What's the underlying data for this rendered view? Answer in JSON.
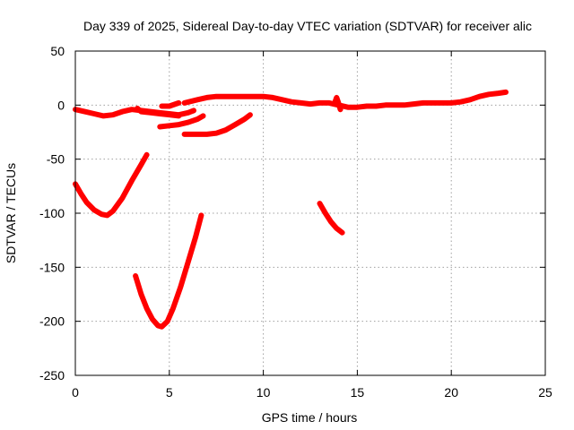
{
  "chart_data": {
    "type": "line",
    "title": "Day 339 of 2025, Sidereal Day-to-day VTEC variation (SDTVAR) for receiver alic",
    "xlabel": "GPS time / hours",
    "ylabel": "SDTVAR / TECUs",
    "xlim": [
      0,
      25
    ],
    "ylim": [
      -250,
      50
    ],
    "xticks": [
      0,
      5,
      10,
      15,
      20,
      25
    ],
    "yticks": [
      -250,
      -200,
      -150,
      -100,
      -50,
      0,
      50
    ],
    "xtick_labels": [
      "0",
      "5",
      "10",
      "15",
      "20",
      "25"
    ],
    "ytick_labels": [
      "-250",
      "-200",
      "-150",
      "-100",
      "-50",
      "0",
      "50"
    ],
    "grid": true,
    "legend": "none",
    "color": "#ff0000",
    "series": [
      {
        "points": [
          [
            0,
            -4
          ],
          [
            0.5,
            -6
          ],
          [
            1,
            -8
          ],
          [
            1.5,
            -10
          ],
          [
            2,
            -9
          ],
          [
            2.5,
            -6
          ],
          [
            3,
            -4
          ],
          [
            3.5,
            -5
          ],
          [
            4,
            -6
          ],
          [
            4.5,
            -7
          ],
          [
            5,
            -8
          ],
          [
            5.5,
            -9
          ],
          [
            6,
            -7
          ],
          [
            6.3,
            -5
          ]
        ]
      },
      {
        "points": [
          [
            3.3,
            -3
          ],
          [
            3.5,
            -6
          ],
          [
            4,
            -7
          ],
          [
            4.5,
            -8
          ],
          [
            5,
            -9
          ],
          [
            5.5,
            -10
          ]
        ]
      },
      {
        "points": [
          [
            4.6,
            -1
          ],
          [
            5,
            -1
          ],
          [
            5.5,
            2
          ]
        ]
      },
      {
        "points": [
          [
            4.5,
            -20
          ],
          [
            5,
            -19
          ],
          [
            5.5,
            -18
          ],
          [
            6,
            -16
          ],
          [
            6.5,
            -13
          ],
          [
            6.8,
            -10
          ]
        ]
      },
      {
        "points": [
          [
            5.8,
            -27
          ],
          [
            6.5,
            -27
          ],
          [
            7,
            -27
          ],
          [
            7.5,
            -26
          ],
          [
            8,
            -23
          ],
          [
            8.5,
            -18
          ],
          [
            9,
            -13
          ],
          [
            9.3,
            -9
          ]
        ]
      },
      {
        "points": [
          [
            5.8,
            2
          ],
          [
            6.5,
            5
          ],
          [
            7,
            7
          ],
          [
            7.5,
            8
          ],
          [
            8,
            8
          ],
          [
            8.5,
            8
          ],
          [
            9,
            8
          ],
          [
            9.5,
            8
          ],
          [
            10,
            8
          ],
          [
            10.5,
            7
          ],
          [
            11,
            5
          ],
          [
            11.5,
            3
          ],
          [
            12,
            2
          ],
          [
            12.5,
            1
          ],
          [
            13,
            2
          ],
          [
            13.5,
            2
          ],
          [
            14,
            0
          ],
          [
            14.5,
            -2
          ],
          [
            15,
            -2
          ],
          [
            15.5,
            -1
          ],
          [
            16,
            -1
          ],
          [
            16.5,
            0
          ],
          [
            17,
            0
          ],
          [
            17.5,
            0
          ],
          [
            18,
            1
          ],
          [
            18.5,
            2
          ],
          [
            19,
            2
          ],
          [
            19.5,
            2
          ],
          [
            20,
            2
          ],
          [
            20.5,
            3
          ],
          [
            21,
            5
          ],
          [
            21.5,
            8
          ],
          [
            22,
            10
          ],
          [
            22.5,
            11
          ],
          [
            22.9,
            12
          ]
        ]
      },
      {
        "points": [
          [
            13.8,
            2
          ],
          [
            13.9,
            7
          ],
          [
            14,
            2
          ],
          [
            14.1,
            -4
          ]
        ]
      },
      {
        "points": [
          [
            0,
            -73
          ],
          [
            0.3,
            -82
          ],
          [
            0.6,
            -90
          ],
          [
            1,
            -97
          ],
          [
            1.4,
            -101
          ],
          [
            1.7,
            -102
          ],
          [
            2,
            -98
          ],
          [
            2.5,
            -86
          ],
          [
            3,
            -70
          ],
          [
            3.5,
            -55
          ],
          [
            3.8,
            -46
          ]
        ]
      },
      {
        "points": [
          [
            3.2,
            -158
          ],
          [
            3.5,
            -175
          ],
          [
            3.8,
            -188
          ],
          [
            4.1,
            -198
          ],
          [
            4.4,
            -204
          ],
          [
            4.6,
            -205
          ],
          [
            4.9,
            -200
          ],
          [
            5.2,
            -188
          ],
          [
            5.6,
            -168
          ],
          [
            6,
            -145
          ],
          [
            6.4,
            -122
          ],
          [
            6.7,
            -102
          ]
        ]
      },
      {
        "points": [
          [
            13,
            -91
          ],
          [
            13.3,
            -100
          ],
          [
            13.6,
            -108
          ],
          [
            13.9,
            -114
          ],
          [
            14.2,
            -118
          ]
        ]
      }
    ]
  }
}
